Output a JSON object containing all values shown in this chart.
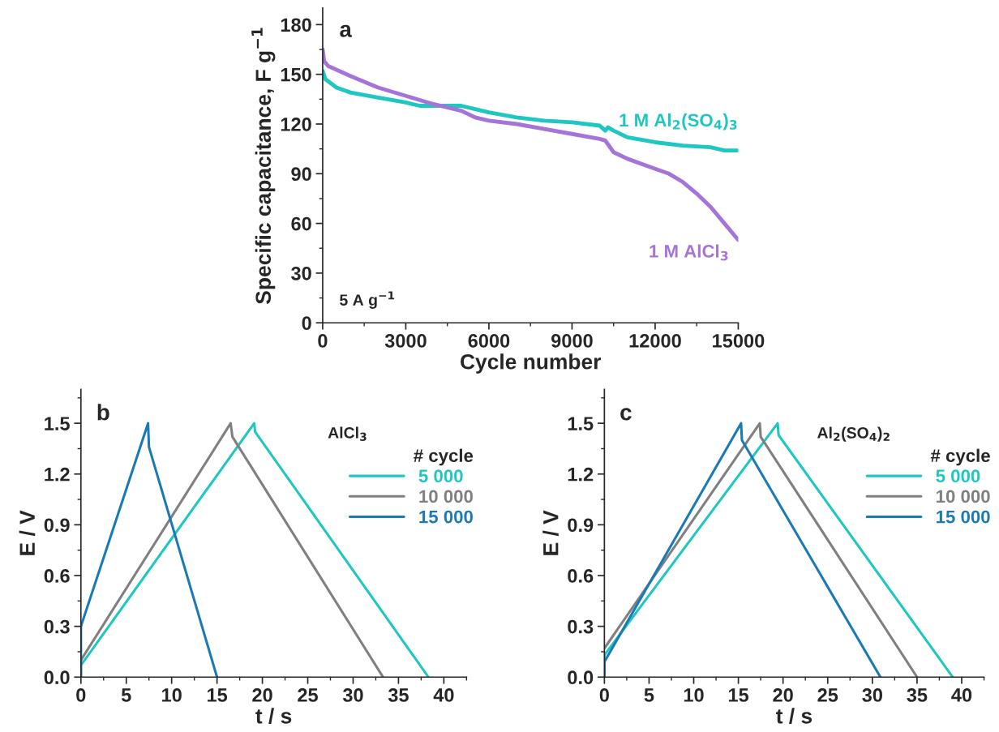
{
  "chart_data": [
    {
      "type": "line",
      "xlabel": "Cycle number",
      "ylabel": "Specific capacitance, F g$^{−1}$",
      "annotations": [
        "a",
        "5 A g$^{−1}$"
      ],
      "xlim": [
        0,
        15000
      ],
      "ylim": [
        0,
        190
      ],
      "xticks": [
        0,
        {
          "value": 1500,
          "label": null
        },
        3000,
        {
          "value": 4500,
          "label": null
        },
        6000,
        {
          "value": 7500,
          "label": null
        },
        9000,
        {
          "value": 10500,
          "label": null
        },
        12000,
        {
          "value": 13500,
          "label": null
        },
        15000
      ],
      "yticks": [
        0,
        {
          "value": 15,
          "label": null
        },
        30,
        {
          "value": 45,
          "label": null
        },
        60,
        {
          "value": 75,
          "label": null
        },
        90,
        {
          "value": 105,
          "label": null
        },
        120,
        {
          "value": 135,
          "label": null
        },
        150,
        {
          "value": 165,
          "label": null
        },
        180
      ],
      "legend": false,
      "grid": false,
      "series": [
        {
          "name": "1 M Al$_{2}$(SO$_{4}$)$_{3}$",
          "color": "#1fc7c1",
          "x": [
            0,
            100,
            500,
            1000,
            2000,
            3000,
            3500,
            4500,
            5000,
            5500,
            6000,
            7000,
            8000,
            9000,
            10000,
            10200,
            10300,
            10500,
            11000,
            12000,
            13000,
            14000,
            14500,
            15000
          ],
          "values": [
            152,
            147,
            142,
            139,
            136,
            133,
            131,
            131,
            131,
            129,
            127,
            124,
            122,
            121,
            119,
            116,
            118,
            116,
            112,
            109,
            107,
            106,
            104,
            104
          ]
        },
        {
          "name": "1 M AlCl$_{3}$",
          "color": "#a474d8",
          "x": [
            0,
            50,
            200,
            1000,
            2000,
            3000,
            4000,
            5000,
            5500,
            6000,
            7000,
            8000,
            9000,
            10000,
            10200,
            10500,
            11000,
            12000,
            12500,
            13000,
            13500,
            14000,
            14500,
            15000
          ],
          "values": [
            165,
            158,
            155,
            149,
            142,
            137,
            132,
            128,
            124,
            122,
            120,
            117,
            114,
            111,
            110,
            103,
            99,
            93,
            90,
            85,
            78,
            70,
            60,
            50
          ]
        }
      ]
    },
    {
      "type": "line",
      "xlabel": "t / s",
      "ylabel": "E / V",
      "annotations": [
        "b",
        "AlCl$_{3}$"
      ],
      "legend_title": "# cycle",
      "legend": "right",
      "grid": false,
      "xlim": [
        0,
        42.5
      ],
      "ylim": [
        0,
        1.7
      ],
      "xticks": [
        0,
        {
          "value": 2.5,
          "label": null
        },
        5,
        {
          "value": 7.5,
          "label": null
        },
        10,
        {
          "value": 12.5,
          "label": null
        },
        15,
        {
          "value": 17.5,
          "label": null
        },
        20,
        {
          "value": 22.5,
          "label": null
        },
        25,
        {
          "value": 27.5,
          "label": null
        },
        30,
        {
          "value": 32.5,
          "label": null
        },
        35,
        {
          "value": 37.5,
          "label": null
        },
        40,
        {
          "value": 42.5,
          "label": null
        }
      ],
      "yticks": [
        {
          "value": 0,
          "label": "0.0"
        },
        {
          "value": 0.15,
          "label": null
        },
        0.3,
        {
          "value": 0.45,
          "label": null
        },
        0.6,
        {
          "value": 0.75,
          "label": null
        },
        0.9,
        {
          "value": 1.05,
          "label": null
        },
        1.2,
        {
          "value": 1.35,
          "label": null
        },
        1.5,
        {
          "value": 1.65,
          "label": null
        }
      ],
      "series": [
        {
          "name": "5 000",
          "color": "#1fc7c1",
          "x": [
            0,
            0,
            19.1,
            19.2,
            38.3
          ],
          "values": [
            0,
            0.07,
            1.5,
            1.45,
            0
          ]
        },
        {
          "name": "10 000",
          "color": "#808080",
          "x": [
            0,
            16.5,
            16.7,
            33.3
          ],
          "values": [
            0.1,
            1.5,
            1.42,
            0
          ]
        },
        {
          "name": "15 000",
          "color": "#1a7ab5",
          "x": [
            0,
            0,
            7.4,
            7.5,
            15.0
          ],
          "values": [
            0,
            0.3,
            1.5,
            1.36,
            0
          ]
        }
      ]
    },
    {
      "type": "line",
      "xlabel": "t / s",
      "ylabel": "E / V",
      "annotations": [
        "c",
        "Al$_{2}$(SO$_{4}$)$_{2}$"
      ],
      "legend_title": "# cycle",
      "legend": "right",
      "grid": false,
      "xlim": [
        0,
        42.5
      ],
      "ylim": [
        0,
        1.7
      ],
      "xticks": [
        0,
        {
          "value": 2.5,
          "label": null
        },
        5,
        {
          "value": 7.5,
          "label": null
        },
        10,
        {
          "value": 12.5,
          "label": null
        },
        15,
        {
          "value": 17.5,
          "label": null
        },
        20,
        {
          "value": 22.5,
          "label": null
        },
        25,
        {
          "value": 27.5,
          "label": null
        },
        30,
        {
          "value": 32.5,
          "label": null
        },
        35,
        {
          "value": 37.5,
          "label": null
        },
        40,
        {
          "value": 42.5,
          "label": null
        }
      ],
      "yticks": [
        {
          "value": 0,
          "label": "0.0"
        },
        {
          "value": 0.15,
          "label": null
        },
        0.3,
        {
          "value": 0.45,
          "label": null
        },
        0.6,
        {
          "value": 0.75,
          "label": null
        },
        0.9,
        {
          "value": 1.05,
          "label": null
        },
        1.2,
        {
          "value": 1.35,
          "label": null
        },
        1.5,
        {
          "value": 1.65,
          "label": null
        }
      ],
      "series": [
        {
          "name": "5 000",
          "color": "#1fc7c1",
          "x": [
            0,
            0,
            19.4,
            19.5,
            39.0
          ],
          "values": [
            0,
            0.13,
            1.5,
            1.43,
            0
          ]
        },
        {
          "name": "10 000",
          "color": "#808080",
          "x": [
            0,
            17.4,
            17.5,
            35.0
          ],
          "values": [
            0.17,
            1.5,
            1.42,
            0
          ]
        },
        {
          "name": "15 000",
          "color": "#1a7ab5",
          "x": [
            0,
            0,
            15.3,
            15.4,
            30.9
          ],
          "values": [
            0,
            0.09,
            1.5,
            1.4,
            0
          ]
        }
      ]
    }
  ]
}
